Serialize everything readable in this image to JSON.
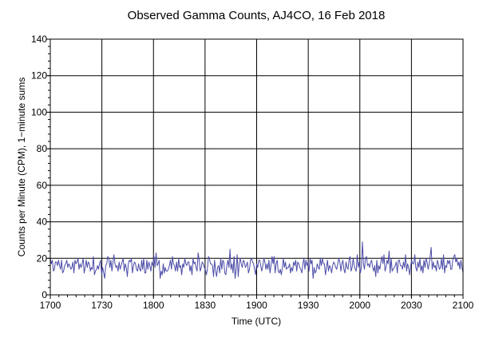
{
  "chart_data": {
    "type": "line",
    "title": "Observed Gamma Counts, AJ4CO, 16 Feb 2018",
    "xlabel": "Time (UTC)",
    "ylabel": "Counts per Minute (CPM), 1−minute sums",
    "x_tick_labels": [
      "1700",
      "1730",
      "1800",
      "1830",
      "1900",
      "1930",
      "2000",
      "2030",
      "2100"
    ],
    "y_tick_labels": [
      "0",
      "20",
      "40",
      "60",
      "80",
      "100",
      "120",
      "140"
    ],
    "x_unit": "minutes from 1700 UTC",
    "xlim": [
      0,
      240
    ],
    "ylim": [
      0,
      140
    ],
    "grid": true,
    "series_color": "#4b4ba8",
    "series": [
      {
        "values": [
          20,
          17,
          19,
          13,
          14,
          18,
          18,
          16,
          19,
          16,
          14,
          19,
          12,
          13,
          16,
          17,
          19,
          15,
          17,
          16,
          14,
          15,
          18,
          12,
          19,
          17,
          18,
          20,
          14,
          17,
          15,
          17,
          20,
          12,
          15,
          19,
          15,
          18,
          17,
          13,
          15,
          14,
          21,
          11,
          13,
          14,
          16,
          14,
          17,
          19,
          11,
          15,
          12,
          9,
          16,
          17,
          21,
          20,
          15,
          19,
          13,
          18,
          22,
          17,
          15,
          16,
          13,
          18,
          14,
          16,
          18,
          20,
          13,
          17,
          15,
          10,
          17,
          19,
          18,
          20,
          12,
          16,
          18,
          17,
          14,
          13,
          17,
          14,
          13,
          19,
          14,
          20,
          12,
          12,
          19,
          14,
          18,
          16,
          13,
          18,
          16,
          21,
          15,
          23,
          16,
          17,
          19,
          9,
          13,
          11,
          17,
          12,
          15,
          13,
          13,
          14,
          16,
          19,
          14,
          21,
          17,
          16,
          13,
          18,
          13,
          20,
          15,
          16,
          11,
          17,
          15,
          20,
          17,
          16,
          18,
          18,
          13,
          16,
          11,
          20,
          17,
          18,
          15,
          13,
          23,
          19,
          13,
          15,
          18,
          17,
          15,
          14,
          11,
          14,
          21,
          20,
          17,
          17,
          16,
          10,
          19,
          13,
          10,
          15,
          16,
          12,
          20,
          14,
          19,
          18,
          12,
          11,
          16,
          19,
          15,
          25,
          14,
          17,
          12,
          21,
          9,
          14,
          22,
          10,
          17,
          20,
          17,
          15,
          19,
          18,
          15,
          16,
          18,
          12,
          14,
          19,
          20,
          18,
          17,
          14,
          11,
          17,
          15,
          19,
          19,
          16,
          13,
          16,
          20,
          18,
          14,
          17,
          14,
          19,
          12,
          16,
          21,
          17,
          21,
          12,
          17,
          19,
          13,
          12,
          14,
          11,
          15,
          20,
          15,
          18,
          14,
          15,
          15,
          17,
          12,
          15,
          13,
          18,
          16,
          19,
          13,
          18,
          17,
          15,
          14,
          12,
          17,
          20,
          14,
          19,
          16,
          18,
          13,
          20,
          17,
          19,
          9,
          15,
          12,
          13,
          17,
          15,
          14,
          20,
          16,
          20,
          17,
          17,
          11,
          15,
          19,
          13,
          16,
          15,
          12,
          16,
          18,
          17,
          15,
          14,
          17,
          20,
          18,
          13,
          17,
          19,
          14,
          12,
          18,
          15,
          14,
          19,
          21,
          13,
          15,
          20,
          16,
          14,
          13,
          22,
          15,
          18,
          12,
          15,
          29,
          17,
          14,
          20,
          21,
          16,
          17,
          15,
          18,
          19,
          15,
          13,
          16,
          10,
          19,
          12,
          16,
          14,
          18,
          21,
          17,
          22,
          13,
          15,
          19,
          17,
          24,
          12,
          20,
          13,
          14,
          15,
          16,
          18,
          12,
          19,
          19,
          16,
          16,
          14,
          18,
          15,
          22,
          13,
          17,
          15,
          11,
          16,
          19,
          17,
          17,
          22,
          15,
          13,
          18,
          15,
          20,
          13,
          16,
          12,
          19,
          15,
          20,
          18,
          14,
          17,
          21,
          26,
          14,
          18,
          15,
          16,
          13,
          19,
          17,
          14,
          15,
          20,
          14,
          22,
          12,
          16,
          15,
          19,
          17,
          19,
          14,
          14,
          19,
          21,
          22,
          18,
          20,
          16,
          18,
          14,
          19,
          15,
          12
        ]
      }
    ]
  }
}
